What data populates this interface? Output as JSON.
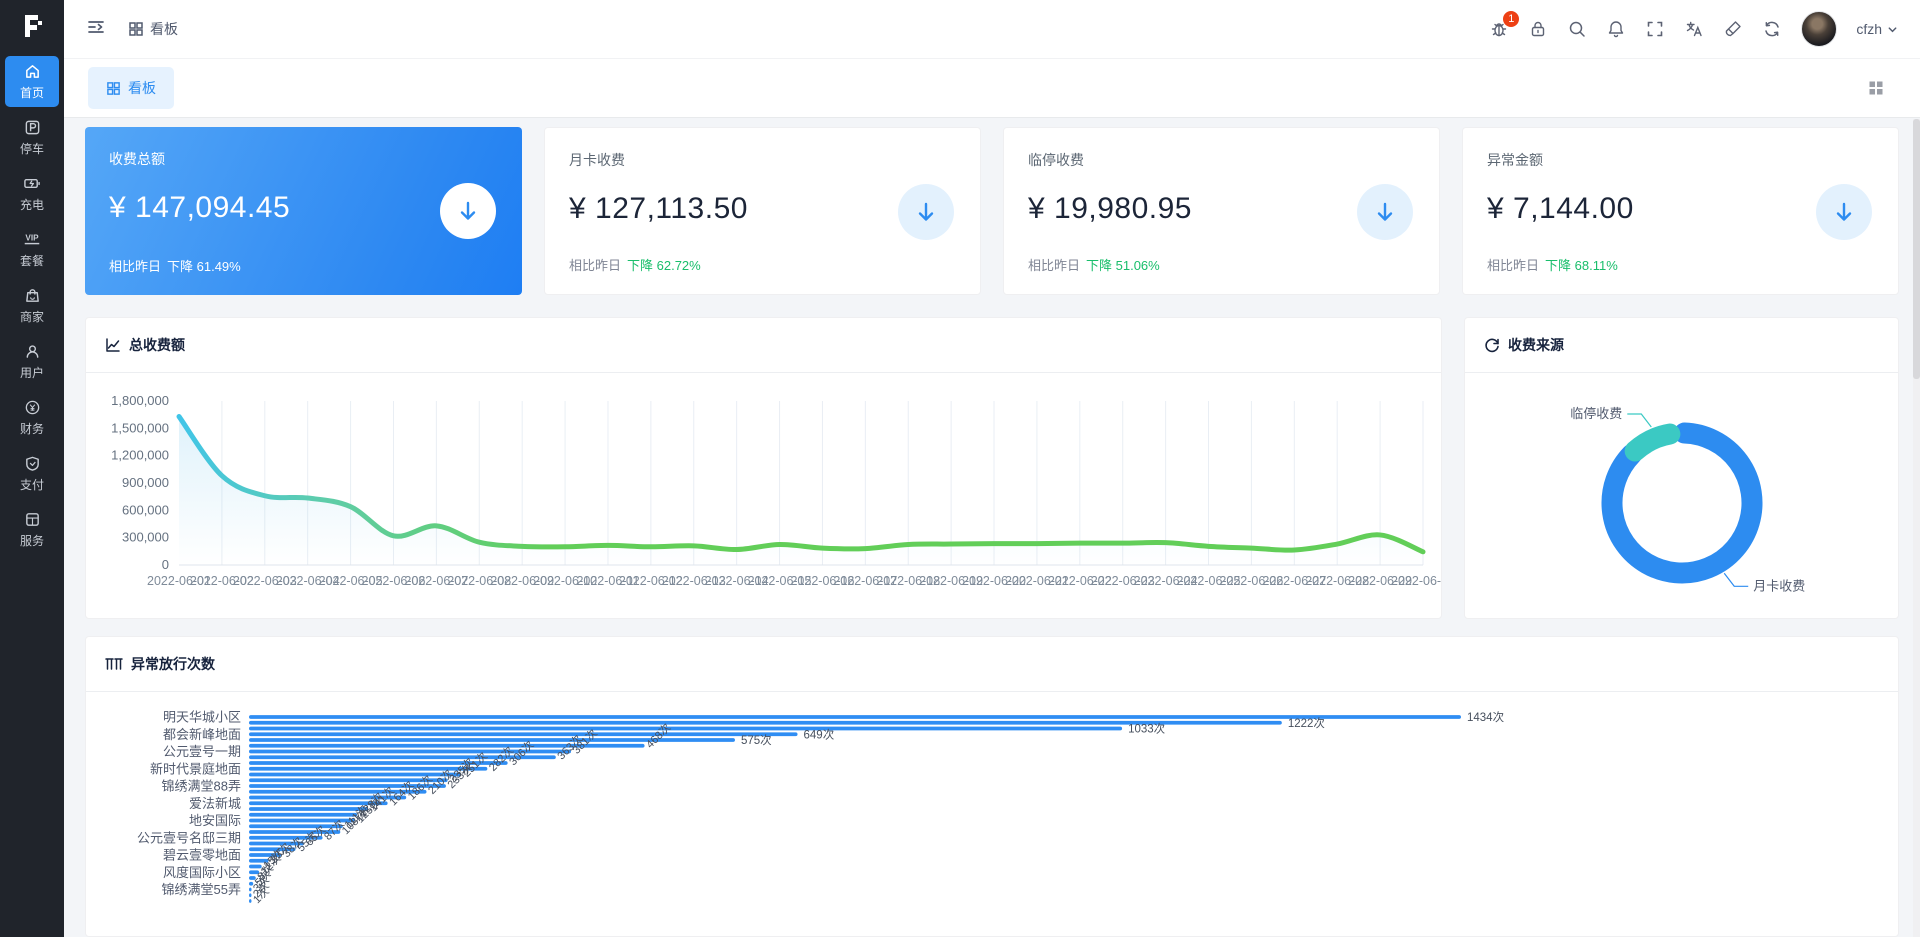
{
  "sidebar": {
    "items": [
      {
        "label": "首页",
        "icon": "home-icon",
        "active": true
      },
      {
        "label": "停车",
        "icon": "parking-icon",
        "active": false
      },
      {
        "label": "充电",
        "icon": "charging-icon",
        "active": false
      },
      {
        "label": "套餐",
        "icon": "vip-package-icon",
        "active": false
      },
      {
        "label": "商家",
        "icon": "merchant-icon",
        "active": false
      },
      {
        "label": "用户",
        "icon": "user-icon",
        "active": false
      },
      {
        "label": "财务",
        "icon": "finance-icon",
        "active": false
      },
      {
        "label": "支付",
        "icon": "payment-icon",
        "active": false
      },
      {
        "label": "服务",
        "icon": "service-icon",
        "active": false
      }
    ]
  },
  "topbar": {
    "breadcrumb_board": "看板",
    "badge_count": "1",
    "user_name": "cfzh",
    "action_icons": [
      "bug-icon",
      "lock-icon",
      "search-icon",
      "bell-icon",
      "fullscreen-icon",
      "translate-icon",
      "theme-brush-icon",
      "refresh-icon"
    ]
  },
  "tabbar": {
    "active_tab": "看板"
  },
  "stat_cards": [
    {
      "title": "收费总额",
      "value": "¥ 147,094.45",
      "compare": "相比昨日",
      "trend": "下降 61.49%"
    },
    {
      "title": "月卡收费",
      "value": "¥ 127,113.50",
      "compare": "相比昨日",
      "trend": "下降 62.72%"
    },
    {
      "title": "临停收费",
      "value": "¥ 19,980.95",
      "compare": "相比昨日",
      "trend": "下降 51.06%"
    },
    {
      "title": "异常金额",
      "value": "¥ 7,144.00",
      "compare": "相比昨日",
      "trend": "下降 68.11%"
    }
  ],
  "panels": {
    "revenue_title": "总收费额",
    "source_title": "收费来源",
    "abnormal_title": "异常放行次数"
  },
  "colors": {
    "primary": "#2d8cf0",
    "green": "#19be6b",
    "badge_red": "#ed4014",
    "bar_blue": "#2f8df3",
    "donut_blue": "#2d8cf0",
    "donut_teal": "#3bc9c3",
    "line_gradient": [
      "#41c5e8",
      "#5fcda8",
      "#62ce58"
    ],
    "grid_line": "#e9eef4",
    "axis_text": "#7f8b99"
  },
  "chart_data": [
    {
      "id": "total-revenue-trend",
      "type": "line",
      "title": "总收费额",
      "x": [
        "2022-06-01",
        "2022-06-02",
        "2022-06-03",
        "2022-06-04",
        "2022-06-05",
        "2022-06-06",
        "2022-06-07",
        "2022-06-08",
        "2022-06-09",
        "2022-06-10",
        "2022-06-11",
        "2022-06-12",
        "2022-06-13",
        "2022-06-14",
        "2022-06-15",
        "2022-06-16",
        "2022-06-17",
        "2022-06-18",
        "2022-06-19",
        "2022-06-20",
        "2022-06-21",
        "2022-06-22",
        "2022-06-23",
        "2022-06-24",
        "2022-06-25",
        "2022-06-26",
        "2022-06-27",
        "2022-06-28",
        "2022-06-29",
        "2022-06-30"
      ],
      "values": [
        1630000,
        980000,
        760000,
        735000,
        640000,
        320000,
        430000,
        250000,
        205000,
        200000,
        215000,
        200000,
        210000,
        170000,
        225000,
        185000,
        180000,
        225000,
        230000,
        235000,
        235000,
        240000,
        240000,
        245000,
        205000,
        185000,
        165000,
        230000,
        330000,
        145000
      ],
      "ylim": [
        0,
        1800000
      ],
      "yticks": [
        0,
        300000,
        600000,
        900000,
        1200000,
        1500000,
        1800000
      ],
      "grid": "vertical",
      "legend": "none"
    },
    {
      "id": "revenue-source",
      "type": "pie",
      "title": "收费来源",
      "slices": [
        {
          "name": "月卡收费",
          "value": 127113.5,
          "color_key": "donut_blue"
        },
        {
          "name": "临停收费",
          "value": 19980.95,
          "color_key": "donut_teal"
        }
      ],
      "legend": "callout-labels"
    },
    {
      "id": "abnormal-release-count",
      "type": "bar",
      "title": "异常放行次数",
      "orientation": "horizontal",
      "unit": "次",
      "categories": [
        "明天华城小区",
        "",
        "",
        "都会新峰地面",
        "",
        "",
        "公元壹号一期",
        "",
        "",
        "新时代景庭地面",
        "",
        "",
        "锦绣满堂88弄",
        "",
        "",
        "爱法新城",
        "",
        "",
        "地安国际",
        "",
        "",
        "公元壹号名邸三期",
        "",
        "",
        "碧云壹零地面",
        "",
        "",
        "风度国际小区",
        "",
        "",
        "锦绣满堂55弄",
        "",
        ""
      ],
      "values": [
        1434,
        1222,
        1033,
        649,
        575,
        468,
        381,
        363,
        306,
        282,
        251,
        235,
        233,
        210,
        186,
        164,
        141,
        128,
        125,
        111,
        108,
        87,
        65,
        55,
        38,
        23,
        15,
        12,
        8,
        5,
        3,
        2,
        1
      ]
    }
  ]
}
